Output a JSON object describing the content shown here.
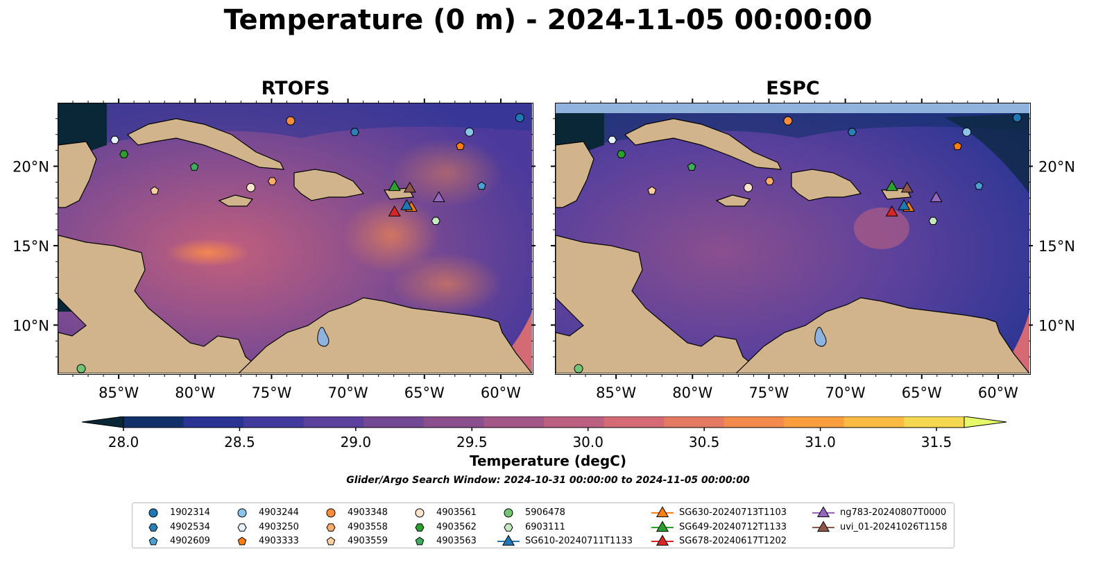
{
  "title": "Temperature (0 m) - 2024-11-05 00:00:00",
  "panels": [
    {
      "name": "RTOFS"
    },
    {
      "name": "ESPC"
    }
  ],
  "lon_ticks": [
    "85°W",
    "80°W",
    "75°W",
    "70°W",
    "65°W",
    "60°W"
  ],
  "lat_ticks": [
    "20°N",
    "15°N",
    "10°N"
  ],
  "colorbar": {
    "label": "Temperature (degC)",
    "ticks": [
      "28.0",
      "28.5",
      "29.0",
      "29.5",
      "30.0",
      "30.5",
      "31.0",
      "31.5"
    ],
    "colors": [
      "#0a2738",
      "#12306a",
      "#2a3593",
      "#433a9d",
      "#5c419c",
      "#754896",
      "#8c4f8e",
      "#a35786",
      "#bb6080",
      "#d46a74",
      "#e57a62",
      "#f28a4d",
      "#f99e3f",
      "#fbbb43",
      "#f5d84f",
      "#e4f86a"
    ]
  },
  "search_window": "Glider/Argo Search Window: 2024-10-31 00:00:00 to 2024-11-05 00:00:00",
  "legend": [
    {
      "label": "1902314",
      "marker": "circle",
      "color": "#1f77b4"
    },
    {
      "label": "4902534",
      "marker": "hexagon",
      "color": "#2c7fb8"
    },
    {
      "label": "4902609",
      "marker": "pentagon",
      "color": "#4a9fd5"
    },
    {
      "label": "4903244",
      "marker": "circle",
      "color": "#8cc3e8"
    },
    {
      "label": "4903250",
      "marker": "hexagon",
      "color": "#e6f2fb"
    },
    {
      "label": "4903333",
      "marker": "pentagon",
      "color": "#ff7f0e"
    },
    {
      "label": "4903348",
      "marker": "circle",
      "color": "#fd8d3c"
    },
    {
      "label": "4903558",
      "marker": "hexagon",
      "color": "#fdae6b"
    },
    {
      "label": "4903559",
      "marker": "pentagon",
      "color": "#fdd0a2"
    },
    {
      "label": "4903561",
      "marker": "circle",
      "color": "#fde3cc"
    },
    {
      "label": "4903562",
      "marker": "hexagon",
      "color": "#2ca02c"
    },
    {
      "label": "4903563",
      "marker": "pentagon",
      "color": "#41ab5d"
    },
    {
      "label": "5906478",
      "marker": "circle",
      "color": "#74c476"
    },
    {
      "label": "6903111",
      "marker": "hexagon",
      "color": "#c7e9c0"
    },
    {
      "label": "SG610-20240711T1133",
      "marker": "triangle",
      "color": "#1f77b4"
    },
    {
      "label": "SG630-20240713T1103",
      "marker": "triangle",
      "color": "#ff7f0e"
    },
    {
      "label": "SG649-20240712T1133",
      "marker": "triangle",
      "color": "#2ca02c"
    },
    {
      "label": "SG678-20240617T1202",
      "marker": "triangle",
      "color": "#d62728"
    },
    {
      "label": "ng783-20240807T0000",
      "marker": "triangle",
      "color": "#9467bd"
    },
    {
      "label": "uvi_01-20241026T1158",
      "marker": "triangle",
      "color": "#8c564b"
    }
  ],
  "map_extent": {
    "lon": [
      -89,
      -58
    ],
    "lat": [
      7,
      24
    ]
  },
  "floats": [
    {
      "label": "1902314",
      "lon": -58.8,
      "lat": 23.1
    },
    {
      "label": "4902534",
      "lon": -69.6,
      "lat": 22.2
    },
    {
      "label": "4902609",
      "lon": -61.3,
      "lat": 18.8
    },
    {
      "label": "4903244",
      "lon": -62.1,
      "lat": 22.2
    },
    {
      "label": "4903250",
      "lon": -85.3,
      "lat": 21.7
    },
    {
      "label": "4903333",
      "lon": -62.7,
      "lat": 21.3
    },
    {
      "label": "4903348",
      "lon": -73.8,
      "lat": 22.9
    },
    {
      "label": "4903558",
      "lon": -75.0,
      "lat": 19.1
    },
    {
      "label": "4903559",
      "lon": -82.7,
      "lat": 18.5
    },
    {
      "label": "4903561",
      "lon": -76.4,
      "lat": 18.7
    },
    {
      "label": "4903562",
      "lon": -84.7,
      "lat": 20.8
    },
    {
      "label": "4903563",
      "lon": -80.1,
      "lat": 20.0
    },
    {
      "label": "5906478",
      "lon": -87.5,
      "lat": 7.3
    },
    {
      "label": "6903111",
      "lon": -64.3,
      "lat": 16.6
    }
  ],
  "gliders": [
    {
      "label": "SG630-20240713T1103",
      "lon": -65.9,
      "lat": 17.5
    },
    {
      "label": "SG649-20240712T1133",
      "lon": -67.0,
      "lat": 18.8
    },
    {
      "label": "SG678-20240617T1202",
      "lon": -67.0,
      "lat": 17.2
    },
    {
      "label": "ng783-20240807T0000",
      "lon": -64.1,
      "lat": 18.1
    },
    {
      "label": "uvi_01-20241026T1158",
      "lon": -66.0,
      "lat": 18.7
    },
    {
      "label": "SG610-20240711T1133",
      "lon": -66.2,
      "lat": 17.6
    }
  ]
}
